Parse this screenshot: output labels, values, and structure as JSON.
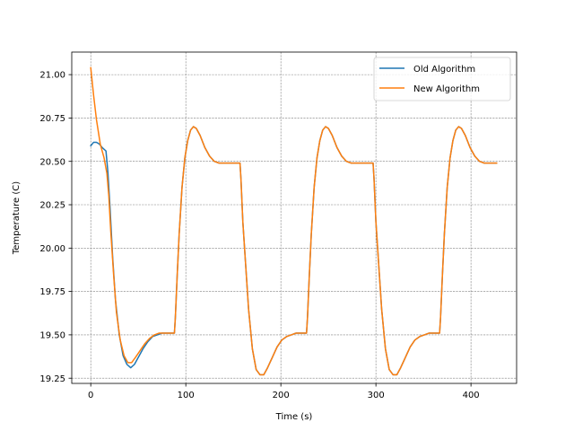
{
  "chart_data": {
    "type": "line",
    "title": "",
    "xlabel": "Time (s)",
    "ylabel": "Temperature (C)",
    "xlim": [
      -20,
      448
    ],
    "ylim": [
      19.22,
      21.13
    ],
    "xticks": [
      0,
      100,
      200,
      300,
      400
    ],
    "xtick_labels": [
      "0",
      "100",
      "200",
      "300",
      "400"
    ],
    "yticks": [
      19.25,
      19.5,
      19.75,
      20.0,
      20.25,
      20.5,
      20.75,
      21.0
    ],
    "ytick_labels": [
      "19.25",
      "19.50",
      "19.75",
      "20.00",
      "20.25",
      "20.50",
      "20.75",
      "21.00"
    ],
    "grid": true,
    "legend_position": "top-right",
    "series": [
      {
        "name": "Old Algorithm",
        "color": "#1f77b4",
        "points": [
          [
            0,
            20.59
          ],
          [
            3,
            20.61
          ],
          [
            6,
            20.61
          ],
          [
            9,
            20.6
          ],
          [
            12,
            20.58
          ],
          [
            16,
            20.56
          ],
          [
            18,
            20.44
          ],
          [
            20,
            20.26
          ],
          [
            23,
            19.95
          ],
          [
            26,
            19.7
          ],
          [
            30,
            19.5
          ],
          [
            34,
            19.38
          ],
          [
            38,
            19.33
          ],
          [
            42,
            19.31
          ],
          [
            46,
            19.33
          ],
          [
            50,
            19.37
          ],
          [
            55,
            19.42
          ],
          [
            60,
            19.46
          ],
          [
            65,
            19.49
          ],
          [
            70,
            19.5
          ],
          [
            75,
            19.51
          ],
          [
            80,
            19.51
          ],
          [
            85,
            19.51
          ],
          [
            88,
            19.51
          ],
          [
            89,
            19.6
          ],
          [
            91,
            19.85
          ],
          [
            93,
            20.08
          ],
          [
            96,
            20.35
          ],
          [
            99,
            20.52
          ],
          [
            102,
            20.62
          ],
          [
            105,
            20.68
          ],
          [
            108,
            20.7
          ],
          [
            111,
            20.69
          ],
          [
            115,
            20.65
          ],
          [
            120,
            20.58
          ],
          [
            125,
            20.53
          ],
          [
            130,
            20.5
          ],
          [
            135,
            20.49
          ],
          [
            140,
            20.49
          ],
          [
            145,
            20.49
          ],
          [
            150,
            20.49
          ],
          [
            157,
            20.49
          ],
          [
            158,
            20.4
          ],
          [
            160,
            20.15
          ],
          [
            163,
            19.9
          ],
          [
            166,
            19.65
          ],
          [
            170,
            19.42
          ],
          [
            174,
            19.3
          ],
          [
            178,
            19.27
          ],
          [
            182,
            19.27
          ],
          [
            186,
            19.31
          ],
          [
            191,
            19.37
          ],
          [
            196,
            19.43
          ],
          [
            201,
            19.47
          ],
          [
            206,
            19.49
          ],
          [
            211,
            19.5
          ],
          [
            216,
            19.51
          ],
          [
            222,
            19.51
          ],
          [
            227,
            19.51
          ],
          [
            228,
            19.6
          ],
          [
            230,
            19.85
          ],
          [
            232,
            20.08
          ],
          [
            235,
            20.35
          ],
          [
            238,
            20.52
          ],
          [
            241,
            20.62
          ],
          [
            244,
            20.68
          ],
          [
            247,
            20.7
          ],
          [
            250,
            20.69
          ],
          [
            254,
            20.65
          ],
          [
            259,
            20.58
          ],
          [
            264,
            20.53
          ],
          [
            269,
            20.5
          ],
          [
            274,
            20.49
          ],
          [
            280,
            20.49
          ],
          [
            286,
            20.49
          ],
          [
            292,
            20.49
          ],
          [
            297,
            20.49
          ],
          [
            298,
            20.4
          ],
          [
            300,
            20.15
          ],
          [
            303,
            19.9
          ],
          [
            306,
            19.65
          ],
          [
            310,
            19.42
          ],
          [
            314,
            19.3
          ],
          [
            318,
            19.27
          ],
          [
            322,
            19.27
          ],
          [
            326,
            19.31
          ],
          [
            331,
            19.37
          ],
          [
            336,
            19.43
          ],
          [
            341,
            19.47
          ],
          [
            346,
            19.49
          ],
          [
            351,
            19.5
          ],
          [
            356,
            19.51
          ],
          [
            362,
            19.51
          ],
          [
            367,
            19.51
          ],
          [
            368,
            19.6
          ],
          [
            370,
            19.85
          ],
          [
            372,
            20.08
          ],
          [
            375,
            20.35
          ],
          [
            378,
            20.52
          ],
          [
            381,
            20.62
          ],
          [
            384,
            20.68
          ],
          [
            387,
            20.7
          ],
          [
            390,
            20.69
          ],
          [
            394,
            20.65
          ],
          [
            399,
            20.58
          ],
          [
            404,
            20.53
          ],
          [
            409,
            20.5
          ],
          [
            414,
            20.49
          ],
          [
            420,
            20.49
          ],
          [
            427,
            20.49
          ]
        ]
      },
      {
        "name": "New Algorithm",
        "color": "#ff7f0e",
        "points": [
          [
            0,
            21.04
          ],
          [
            3,
            20.88
          ],
          [
            6,
            20.74
          ],
          [
            10,
            20.6
          ],
          [
            14,
            20.52
          ],
          [
            17,
            20.43
          ],
          [
            19,
            20.3
          ],
          [
            21,
            20.1
          ],
          [
            24,
            19.85
          ],
          [
            27,
            19.63
          ],
          [
            31,
            19.47
          ],
          [
            35,
            19.38
          ],
          [
            39,
            19.34
          ],
          [
            43,
            19.34
          ],
          [
            47,
            19.37
          ],
          [
            52,
            19.41
          ],
          [
            57,
            19.45
          ],
          [
            62,
            19.48
          ],
          [
            67,
            19.5
          ],
          [
            72,
            19.51
          ],
          [
            78,
            19.51
          ],
          [
            83,
            19.51
          ],
          [
            88,
            19.51
          ],
          [
            89,
            19.6
          ],
          [
            91,
            19.85
          ],
          [
            93,
            20.08
          ],
          [
            96,
            20.35
          ],
          [
            99,
            20.52
          ],
          [
            102,
            20.62
          ],
          [
            105,
            20.68
          ],
          [
            108,
            20.7
          ],
          [
            111,
            20.69
          ],
          [
            115,
            20.65
          ],
          [
            120,
            20.58
          ],
          [
            125,
            20.53
          ],
          [
            130,
            20.5
          ],
          [
            135,
            20.49
          ],
          [
            140,
            20.49
          ],
          [
            145,
            20.49
          ],
          [
            150,
            20.49
          ],
          [
            157,
            20.49
          ],
          [
            158,
            20.4
          ],
          [
            160,
            20.15
          ],
          [
            163,
            19.9
          ],
          [
            166,
            19.65
          ],
          [
            170,
            19.42
          ],
          [
            174,
            19.3
          ],
          [
            178,
            19.27
          ],
          [
            182,
            19.27
          ],
          [
            186,
            19.31
          ],
          [
            191,
            19.37
          ],
          [
            196,
            19.43
          ],
          [
            201,
            19.47
          ],
          [
            206,
            19.49
          ],
          [
            211,
            19.5
          ],
          [
            216,
            19.51
          ],
          [
            222,
            19.51
          ],
          [
            227,
            19.51
          ],
          [
            228,
            19.6
          ],
          [
            230,
            19.85
          ],
          [
            232,
            20.08
          ],
          [
            235,
            20.35
          ],
          [
            238,
            20.52
          ],
          [
            241,
            20.62
          ],
          [
            244,
            20.68
          ],
          [
            247,
            20.7
          ],
          [
            250,
            20.69
          ],
          [
            254,
            20.65
          ],
          [
            259,
            20.58
          ],
          [
            264,
            20.53
          ],
          [
            269,
            20.5
          ],
          [
            274,
            20.49
          ],
          [
            280,
            20.49
          ],
          [
            286,
            20.49
          ],
          [
            292,
            20.49
          ],
          [
            297,
            20.49
          ],
          [
            298,
            20.4
          ],
          [
            300,
            20.15
          ],
          [
            303,
            19.9
          ],
          [
            306,
            19.65
          ],
          [
            310,
            19.42
          ],
          [
            314,
            19.3
          ],
          [
            318,
            19.27
          ],
          [
            322,
            19.27
          ],
          [
            326,
            19.31
          ],
          [
            331,
            19.37
          ],
          [
            336,
            19.43
          ],
          [
            341,
            19.47
          ],
          [
            346,
            19.49
          ],
          [
            351,
            19.5
          ],
          [
            356,
            19.51
          ],
          [
            362,
            19.51
          ],
          [
            367,
            19.51
          ],
          [
            368,
            19.6
          ],
          [
            370,
            19.85
          ],
          [
            372,
            20.08
          ],
          [
            375,
            20.35
          ],
          [
            378,
            20.52
          ],
          [
            381,
            20.62
          ],
          [
            384,
            20.68
          ],
          [
            387,
            20.7
          ],
          [
            390,
            20.69
          ],
          [
            394,
            20.65
          ],
          [
            399,
            20.58
          ],
          [
            404,
            20.53
          ],
          [
            409,
            20.5
          ],
          [
            414,
            20.49
          ],
          [
            420,
            20.49
          ],
          [
            427,
            20.49
          ]
        ]
      }
    ]
  }
}
